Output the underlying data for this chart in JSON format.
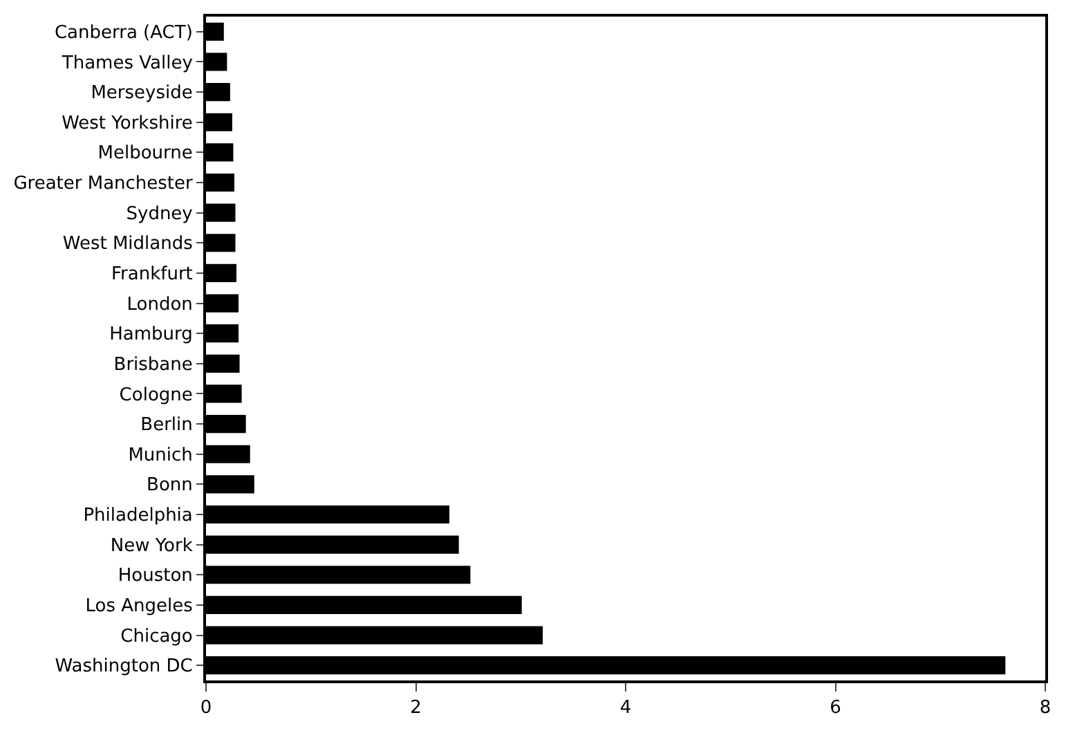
{
  "chart_data": {
    "type": "bar",
    "orientation": "horizontal",
    "categories": [
      "Canberra (ACT)",
      "Thames Valley",
      "Merseyside",
      "West Yorkshire",
      "Melbourne",
      "Greater Manchester",
      "Sydney",
      "West Midlands",
      "Frankfurt",
      "London",
      "Hamburg",
      "Brisbane",
      "Cologne",
      "Berlin",
      "Munich",
      "Bonn",
      "Philadelphia",
      "New York",
      "Houston",
      "Los Angeles",
      "Chicago",
      "Washington DC"
    ],
    "values": [
      0.17,
      0.2,
      0.23,
      0.25,
      0.26,
      0.27,
      0.28,
      0.28,
      0.29,
      0.31,
      0.31,
      0.32,
      0.34,
      0.38,
      0.42,
      0.46,
      2.32,
      2.41,
      2.52,
      3.01,
      3.21,
      7.62
    ],
    "color": "#000000",
    "xlim": [
      0,
      8
    ],
    "xticks": [
      0,
      2,
      4,
      6,
      8
    ],
    "legend": false
  }
}
